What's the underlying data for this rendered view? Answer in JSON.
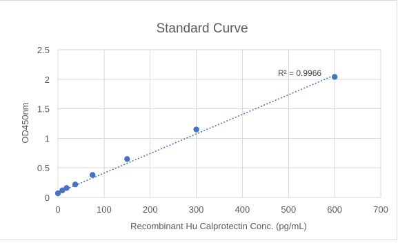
{
  "chart_data": {
    "type": "scatter",
    "title": "Standard Curve",
    "xlabel": "Recombinant Hu Calprotectin Conc. (pg/mL)",
    "ylabel": "OD450nm",
    "xlim": [
      0,
      700
    ],
    "ylim": [
      0,
      2.5
    ],
    "xticks": [
      "0",
      "100",
      "200",
      "300",
      "400",
      "500",
      "600",
      "700"
    ],
    "yticks": [
      "0",
      "0.5",
      "1",
      "1.5",
      "2",
      "2.5"
    ],
    "grid": true,
    "legend": "none",
    "series": [
      {
        "x": [
          0,
          9.4,
          18.75,
          37.5,
          75,
          150,
          300,
          600
        ],
        "y": [
          0.07,
          0.12,
          0.16,
          0.22,
          0.38,
          0.65,
          1.15,
          2.04
        ],
        "color": "#4472c4"
      }
    ],
    "trendline": {
      "type": "linear",
      "slope": 0.003315,
      "intercept": 0.08,
      "x_range": [
        0,
        600
      ],
      "style": "dotted",
      "color": "#4472c4",
      "label": "R² = 0.9966"
    }
  }
}
